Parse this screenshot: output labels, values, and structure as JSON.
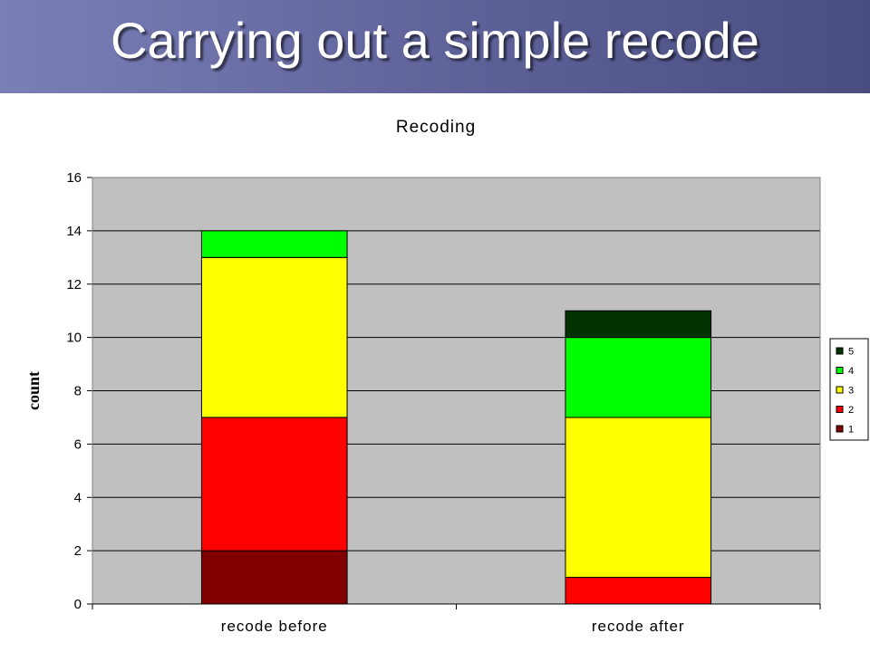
{
  "slide": {
    "title": "Carrying out a simple recode"
  },
  "colors": {
    "header": "#5d6198",
    "plot_bg": "#c0c0c0"
  },
  "chart_data": {
    "type": "bar",
    "stacked": true,
    "title": "Recoding",
    "xlabel": "",
    "ylabel": "count",
    "ylim": [
      0,
      16
    ],
    "yticks": [
      0,
      2,
      4,
      6,
      8,
      10,
      12,
      14,
      16
    ],
    "grid": true,
    "legend_position": "right",
    "categories": [
      "recode before",
      "recode after"
    ],
    "series": [
      {
        "name": "1",
        "color": "#800000",
        "values": [
          2,
          0
        ]
      },
      {
        "name": "2",
        "color": "#ff0000",
        "values": [
          5,
          1
        ]
      },
      {
        "name": "3",
        "color": "#ffff00",
        "values": [
          6,
          6
        ]
      },
      {
        "name": "4",
        "color": "#00ff00",
        "values": [
          1,
          3
        ]
      },
      {
        "name": "5",
        "color": "#003300",
        "values": [
          0,
          1
        ]
      }
    ]
  }
}
